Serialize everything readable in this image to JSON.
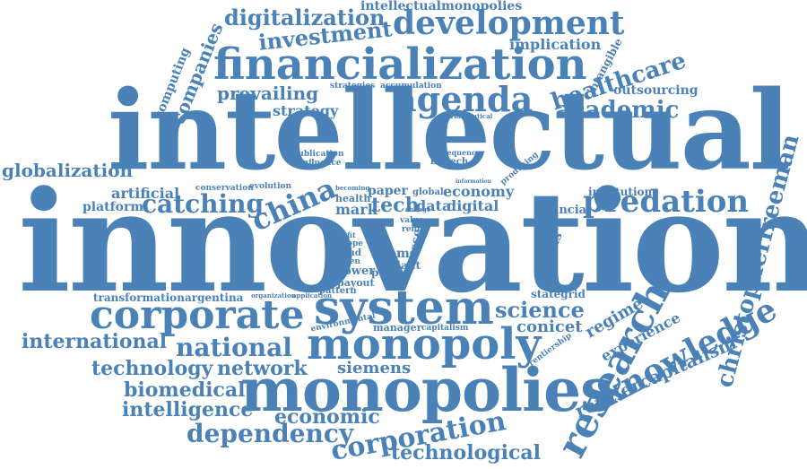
{
  "palette": {
    "word_color": "#4a82b8",
    "background": "#ffffff"
  },
  "words": [
    "innovation",
    "intellectual",
    "financialization",
    "monopolies",
    "monopoly",
    "system",
    "corporate",
    "development",
    "research",
    "knowledge",
    "christopherfreeman",
    "agenda",
    "corporation",
    "predation",
    "digitalization",
    "investment",
    "healthcare",
    "academic",
    "china",
    "catching",
    "national",
    "dependency",
    "technological",
    "international",
    "science",
    "globalization",
    "technology",
    "network",
    "biomedical",
    "intelligence",
    "economic",
    "rentiercapitalism",
    "experience",
    "regime",
    "conicet",
    "siemens",
    "companies",
    "computing",
    "prevailing",
    "strategy",
    "implication",
    "intangible",
    "outsourcing",
    "intellectualmonopolies",
    "artificial",
    "platform",
    "economy",
    "digital",
    "data",
    "tech",
    "mark",
    "paper",
    "financial",
    "institution",
    "analysis",
    "stategrid",
    "transformation",
    "argentina",
    "manager",
    "capitalism",
    "payout",
    "power",
    "pattern",
    "public",
    "hbms",
    "giant",
    "asset",
    "cloud",
    "driven",
    "europe",
    "profit",
    "rent",
    "value",
    "health",
    "bigtech",
    "consequence",
    "publication",
    "influence",
    "conservation",
    "evolution",
    "becoming",
    "global",
    "strategies",
    "accumulation",
    "pharmaceutical",
    "rentiership",
    "environmental",
    "organization",
    "application",
    "information",
    "producing",
    "change"
  ]
}
